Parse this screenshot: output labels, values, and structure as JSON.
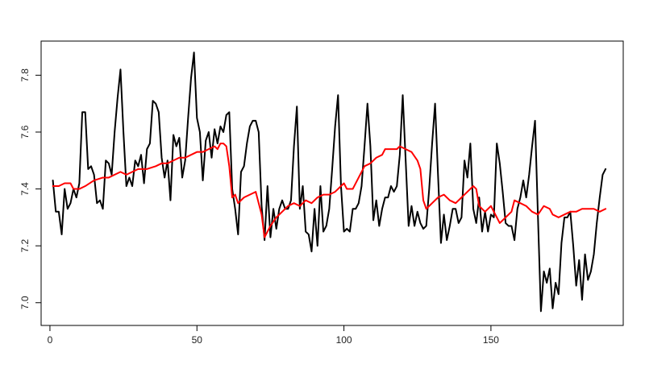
{
  "chart_data": {
    "type": "line",
    "title": "",
    "xlabel": "",
    "ylabel": "",
    "xlim": [
      -3,
      195
    ],
    "ylim": [
      6.92,
      7.92
    ],
    "x_ticks": [
      0,
      50,
      100,
      150
    ],
    "x_tick_labels": [
      "0",
      "50",
      "100",
      "150"
    ],
    "y_ticks": [
      7.0,
      7.2,
      7.4,
      7.6,
      7.8
    ],
    "y_tick_labels": [
      "7.0",
      "7.2",
      "7.4",
      "7.6",
      "7.8"
    ],
    "grid": false,
    "legend": "none",
    "series": [
      {
        "color": "#000000",
        "points": [
          [
            1,
            7.43
          ],
          [
            2,
            7.32
          ],
          [
            3,
            7.32
          ],
          [
            4,
            7.24
          ],
          [
            5,
            7.4
          ],
          [
            6,
            7.33
          ],
          [
            7,
            7.35
          ],
          [
            8,
            7.4
          ],
          [
            9,
            7.37
          ],
          [
            10,
            7.42
          ],
          [
            11,
            7.67
          ],
          [
            12,
            7.67
          ],
          [
            13,
            7.47
          ],
          [
            14,
            7.48
          ],
          [
            15,
            7.45
          ],
          [
            16,
            7.35
          ],
          [
            17,
            7.36
          ],
          [
            18,
            7.33
          ],
          [
            19,
            7.5
          ],
          [
            20,
            7.49
          ],
          [
            21,
            7.45
          ],
          [
            22,
            7.6
          ],
          [
            23,
            7.72
          ],
          [
            24,
            7.82
          ],
          [
            25,
            7.6
          ],
          [
            26,
            7.41
          ],
          [
            27,
            7.44
          ],
          [
            28,
            7.41
          ],
          [
            29,
            7.5
          ],
          [
            30,
            7.48
          ],
          [
            31,
            7.52
          ],
          [
            32,
            7.42
          ],
          [
            33,
            7.54
          ],
          [
            34,
            7.56
          ],
          [
            35,
            7.71
          ],
          [
            36,
            7.7
          ],
          [
            37,
            7.67
          ],
          [
            38,
            7.51
          ],
          [
            39,
            7.44
          ],
          [
            40,
            7.5
          ],
          [
            41,
            7.36
          ],
          [
            42,
            7.59
          ],
          [
            43,
            7.55
          ],
          [
            44,
            7.58
          ],
          [
            45,
            7.44
          ],
          [
            46,
            7.5
          ],
          [
            47,
            7.65
          ],
          [
            48,
            7.79
          ],
          [
            49,
            7.88
          ],
          [
            50,
            7.65
          ],
          [
            51,
            7.6
          ],
          [
            52,
            7.43
          ],
          [
            53,
            7.57
          ],
          [
            54,
            7.6
          ],
          [
            55,
            7.51
          ],
          [
            56,
            7.61
          ],
          [
            57,
            7.56
          ],
          [
            58,
            7.62
          ],
          [
            59,
            7.6
          ],
          [
            60,
            7.66
          ],
          [
            61,
            7.67
          ],
          [
            62,
            7.4
          ],
          [
            63,
            7.33
          ],
          [
            64,
            7.24
          ],
          [
            65,
            7.46
          ],
          [
            66,
            7.48
          ],
          [
            67,
            7.56
          ],
          [
            68,
            7.62
          ],
          [
            69,
            7.64
          ],
          [
            70,
            7.64
          ],
          [
            71,
            7.6
          ],
          [
            72,
            7.34
          ],
          [
            73,
            7.22
          ],
          [
            74,
            7.41
          ],
          [
            75,
            7.23
          ],
          [
            76,
            7.33
          ],
          [
            77,
            7.26
          ],
          [
            78,
            7.33
          ],
          [
            79,
            7.36
          ],
          [
            80,
            7.33
          ],
          [
            81,
            7.33
          ],
          [
            82,
            7.36
          ],
          [
            83,
            7.55
          ],
          [
            84,
            7.69
          ],
          [
            85,
            7.33
          ],
          [
            86,
            7.41
          ],
          [
            87,
            7.25
          ],
          [
            88,
            7.24
          ],
          [
            89,
            7.18
          ],
          [
            90,
            7.33
          ],
          [
            91,
            7.2
          ],
          [
            92,
            7.41
          ],
          [
            93,
            7.25
          ],
          [
            94,
            7.27
          ],
          [
            95,
            7.33
          ],
          [
            96,
            7.47
          ],
          [
            97,
            7.62
          ],
          [
            98,
            7.73
          ],
          [
            99,
            7.41
          ],
          [
            100,
            7.25
          ],
          [
            101,
            7.26
          ],
          [
            102,
            7.25
          ],
          [
            103,
            7.33
          ],
          [
            104,
            7.33
          ],
          [
            105,
            7.35
          ],
          [
            106,
            7.41
          ],
          [
            107,
            7.55
          ],
          [
            108,
            7.7
          ],
          [
            109,
            7.55
          ],
          [
            110,
            7.29
          ],
          [
            111,
            7.36
          ],
          [
            112,
            7.27
          ],
          [
            113,
            7.33
          ],
          [
            114,
            7.37
          ],
          [
            115,
            7.37
          ],
          [
            116,
            7.41
          ],
          [
            117,
            7.39
          ],
          [
            118,
            7.41
          ],
          [
            119,
            7.52
          ],
          [
            120,
            7.73
          ],
          [
            121,
            7.5
          ],
          [
            122,
            7.27
          ],
          [
            123,
            7.34
          ],
          [
            124,
            7.27
          ],
          [
            125,
            7.32
          ],
          [
            126,
            7.28
          ],
          [
            127,
            7.26
          ],
          [
            128,
            7.27
          ],
          [
            129,
            7.4
          ],
          [
            130,
            7.56
          ],
          [
            131,
            7.7
          ],
          [
            132,
            7.45
          ],
          [
            133,
            7.21
          ],
          [
            134,
            7.31
          ],
          [
            135,
            7.22
          ],
          [
            136,
            7.27
          ],
          [
            137,
            7.33
          ],
          [
            138,
            7.33
          ],
          [
            139,
            7.28
          ],
          [
            140,
            7.3
          ],
          [
            141,
            7.5
          ],
          [
            142,
            7.44
          ],
          [
            143,
            7.56
          ],
          [
            144,
            7.33
          ],
          [
            145,
            7.28
          ],
          [
            146,
            7.37
          ],
          [
            147,
            7.25
          ],
          [
            148,
            7.32
          ],
          [
            149,
            7.25
          ],
          [
            150,
            7.31
          ],
          [
            151,
            7.3
          ],
          [
            152,
            7.56
          ],
          [
            153,
            7.49
          ],
          [
            154,
            7.39
          ],
          [
            155,
            7.28
          ],
          [
            156,
            7.27
          ],
          [
            157,
            7.27
          ],
          [
            158,
            7.22
          ],
          [
            159,
            7.33
          ],
          [
            160,
            7.37
          ],
          [
            161,
            7.43
          ],
          [
            162,
            7.37
          ],
          [
            163,
            7.45
          ],
          [
            164,
            7.55
          ],
          [
            165,
            7.64
          ],
          [
            166,
            7.3
          ],
          [
            167,
            6.97
          ],
          [
            168,
            7.11
          ],
          [
            169,
            7.07
          ],
          [
            170,
            7.12
          ],
          [
            171,
            6.98
          ],
          [
            172,
            7.07
          ],
          [
            173,
            7.03
          ],
          [
            174,
            7.21
          ],
          [
            175,
            7.3
          ],
          [
            176,
            7.3
          ],
          [
            177,
            7.32
          ],
          [
            178,
            7.2
          ],
          [
            179,
            7.06
          ],
          [
            180,
            7.15
          ],
          [
            181,
            7.01
          ],
          [
            182,
            7.17
          ],
          [
            183,
            7.08
          ],
          [
            184,
            7.11
          ],
          [
            185,
            7.17
          ],
          [
            186,
            7.28
          ],
          [
            187,
            7.37
          ],
          [
            188,
            7.45
          ],
          [
            189,
            7.47
          ]
        ]
      },
      {
        "color": "#ff0000",
        "points": [
          [
            1,
            7.41
          ],
          [
            3,
            7.41
          ],
          [
            5,
            7.42
          ],
          [
            7,
            7.42
          ],
          [
            8,
            7.4
          ],
          [
            10,
            7.4
          ],
          [
            12,
            7.41
          ],
          [
            15,
            7.43
          ],
          [
            18,
            7.44
          ],
          [
            20,
            7.44
          ],
          [
            22,
            7.45
          ],
          [
            24,
            7.46
          ],
          [
            26,
            7.45
          ],
          [
            28,
            7.46
          ],
          [
            30,
            7.47
          ],
          [
            33,
            7.47
          ],
          [
            36,
            7.48
          ],
          [
            38,
            7.49
          ],
          [
            40,
            7.49
          ],
          [
            42,
            7.5
          ],
          [
            44,
            7.51
          ],
          [
            46,
            7.51
          ],
          [
            48,
            7.52
          ],
          [
            50,
            7.53
          ],
          [
            52,
            7.53
          ],
          [
            54,
            7.54
          ],
          [
            56,
            7.55
          ],
          [
            57,
            7.54
          ],
          [
            58,
            7.56
          ],
          [
            59,
            7.56
          ],
          [
            60,
            7.55
          ],
          [
            61,
            7.48
          ],
          [
            62,
            7.37
          ],
          [
            63,
            7.38
          ],
          [
            64,
            7.35
          ],
          [
            66,
            7.37
          ],
          [
            68,
            7.38
          ],
          [
            70,
            7.39
          ],
          [
            71,
            7.35
          ],
          [
            72,
            7.31
          ],
          [
            73,
            7.23
          ],
          [
            75,
            7.27
          ],
          [
            77,
            7.3
          ],
          [
            79,
            7.32
          ],
          [
            81,
            7.34
          ],
          [
            83,
            7.35
          ],
          [
            85,
            7.34
          ],
          [
            87,
            7.36
          ],
          [
            89,
            7.35
          ],
          [
            91,
            7.37
          ],
          [
            93,
            7.38
          ],
          [
            95,
            7.38
          ],
          [
            97,
            7.39
          ],
          [
            99,
            7.41
          ],
          [
            100,
            7.42
          ],
          [
            101,
            7.4
          ],
          [
            103,
            7.4
          ],
          [
            105,
            7.44
          ],
          [
            107,
            7.48
          ],
          [
            109,
            7.49
          ],
          [
            111,
            7.51
          ],
          [
            113,
            7.52
          ],
          [
            114,
            7.54
          ],
          [
            116,
            7.54
          ],
          [
            118,
            7.54
          ],
          [
            119,
            7.55
          ],
          [
            121,
            7.54
          ],
          [
            123,
            7.53
          ],
          [
            125,
            7.5
          ],
          [
            126,
            7.47
          ],
          [
            127,
            7.36
          ],
          [
            128,
            7.33
          ],
          [
            130,
            7.35
          ],
          [
            132,
            7.37
          ],
          [
            134,
            7.38
          ],
          [
            136,
            7.36
          ],
          [
            138,
            7.35
          ],
          [
            140,
            7.37
          ],
          [
            142,
            7.39
          ],
          [
            144,
            7.41
          ],
          [
            145,
            7.4
          ],
          [
            146,
            7.34
          ],
          [
            148,
            7.32
          ],
          [
            150,
            7.34
          ],
          [
            152,
            7.3
          ],
          [
            153,
            7.28
          ],
          [
            155,
            7.3
          ],
          [
            157,
            7.32
          ],
          [
            158,
            7.36
          ],
          [
            160,
            7.35
          ],
          [
            162,
            7.34
          ],
          [
            164,
            7.32
          ],
          [
            166,
            7.31
          ],
          [
            168,
            7.34
          ],
          [
            170,
            7.33
          ],
          [
            171,
            7.31
          ],
          [
            173,
            7.3
          ],
          [
            175,
            7.31
          ],
          [
            177,
            7.32
          ],
          [
            179,
            7.32
          ],
          [
            181,
            7.33
          ],
          [
            183,
            7.33
          ],
          [
            185,
            7.33
          ],
          [
            187,
            7.32
          ],
          [
            189,
            7.33
          ]
        ]
      }
    ]
  }
}
